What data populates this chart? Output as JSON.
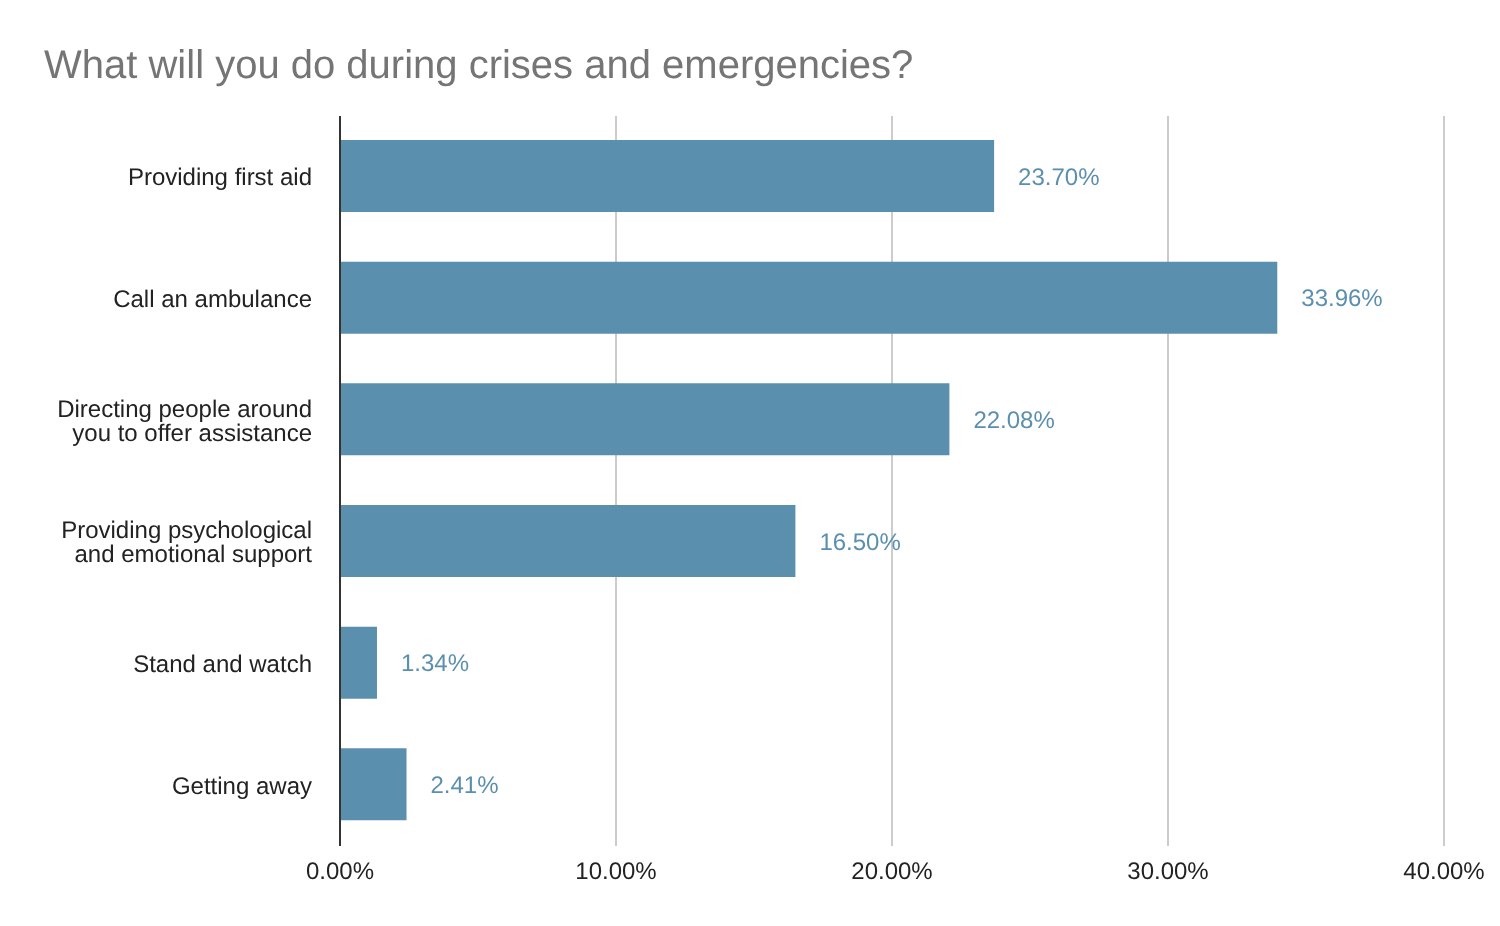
{
  "chart_data": {
    "type": "bar",
    "orientation": "horizontal",
    "title": "What will you do during crises and emergencies?",
    "categories": [
      "Providing first aid",
      "Call an ambulance",
      "Directing people around you to offer assistance",
      "Providing psychological and emotional support",
      "Stand and watch",
      "Getting away"
    ],
    "values": [
      23.7,
      33.96,
      22.08,
      16.5,
      1.34,
      2.41
    ],
    "value_labels": [
      "23.70%",
      "33.96%",
      "22.08%",
      "16.50%",
      "1.34%",
      "2.41%"
    ],
    "color": "#5b8fae",
    "xlim": [
      0,
      40
    ],
    "xticks": [
      {
        "value": 0,
        "label": "0.00%"
      },
      {
        "value": 10,
        "label": "10.00%"
      },
      {
        "value": 20,
        "label": "20.00%"
      },
      {
        "value": 30,
        "label": "30.00%"
      },
      {
        "value": 40,
        "label": "40.00%"
      }
    ],
    "grid": "x"
  }
}
